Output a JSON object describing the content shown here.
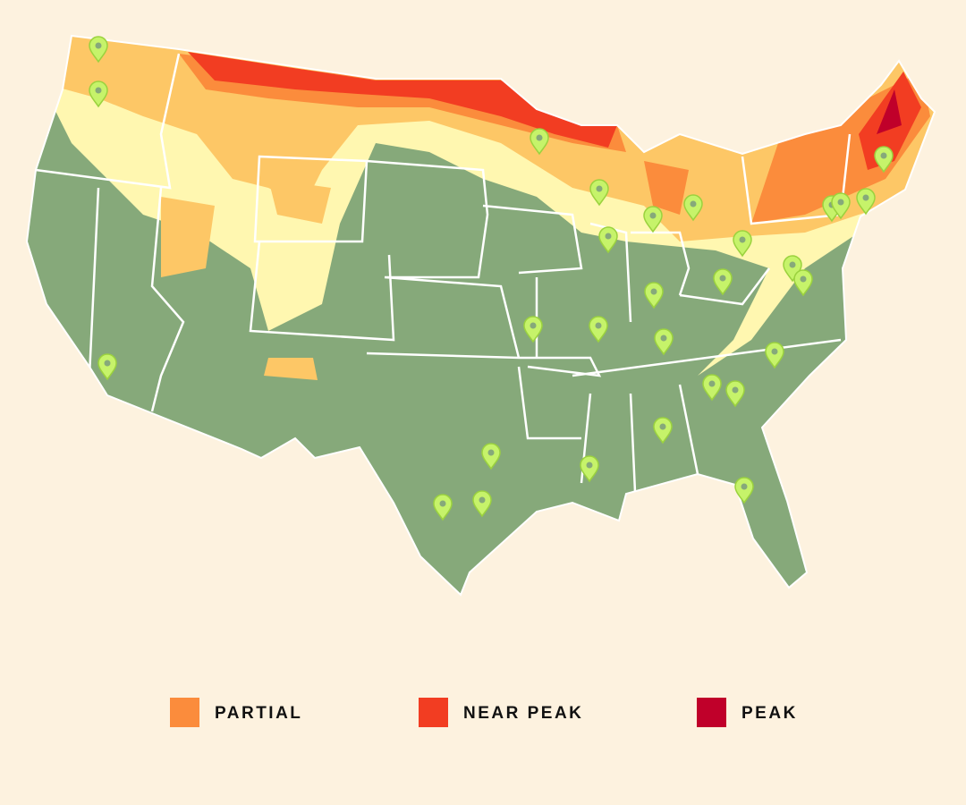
{
  "legend": {
    "items": [
      {
        "label": "PARTIAL",
        "color": "#fb8c3c"
      },
      {
        "label": "NEAR PEAK",
        "color": "#f23d22"
      },
      {
        "label": "PEAK",
        "color": "#c0002a"
      }
    ]
  }
}
